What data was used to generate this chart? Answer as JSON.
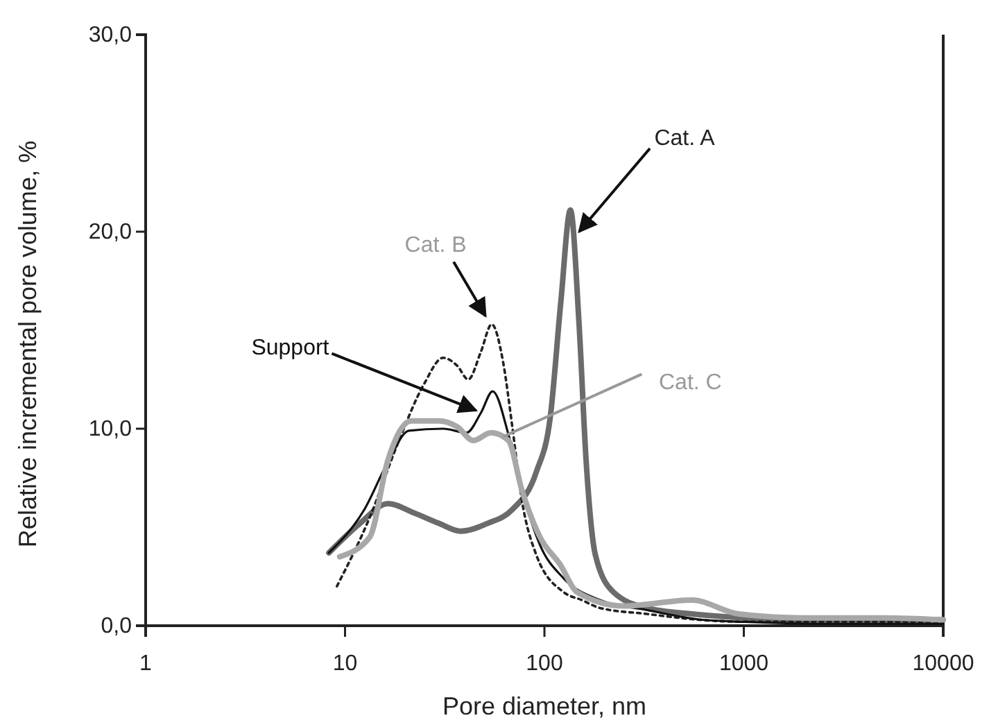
{
  "chart_data": {
    "type": "line",
    "xlabel": "Pore diameter, nm",
    "ylabel": "Relative incremental pore volume, %",
    "log": "x",
    "xlim": [
      1,
      10000
    ],
    "xticks": [
      1,
      10,
      100,
      1000,
      10000
    ],
    "ylim": [
      0,
      30
    ],
    "yticks": [
      {
        "value": 0,
        "label": "0,0"
      },
      {
        "value": 10,
        "label": "10,0"
      },
      {
        "value": 20,
        "label": "20,0"
      },
      {
        "value": 30,
        "label": "30,0"
      }
    ],
    "series": [
      {
        "color": "#6b6b6b",
        "x": [
          8.3,
          11.9,
          16.4,
          22.5,
          29.5,
          38,
          52,
          69,
          91,
          107,
          121,
          135,
          149,
          162,
          180,
          222,
          325,
          550,
          1000,
          2000,
          5000,
          10000
        ],
        "values": [
          3.7,
          5.2,
          6.2,
          5.7,
          5.2,
          4.8,
          5.2,
          5.9,
          7.8,
          10.6,
          16.5,
          21.1,
          15.4,
          8.3,
          3.6,
          1.7,
          0.9,
          0.6,
          0.4,
          0.3,
          0.3,
          0.3
        ]
      },
      {
        "color": "#222222",
        "line_style": "dotted",
        "x": [
          9.1,
          13.3,
          18.3,
          25,
          31,
          36.5,
          41.5,
          48,
          54.4,
          62,
          69,
          77,
          91,
          125,
          154,
          190,
          325,
          600,
          1000,
          3000,
          10000
        ],
        "values": [
          2.0,
          5.5,
          9.2,
          12.3,
          13.6,
          13.2,
          12.5,
          13.9,
          15.3,
          13.4,
          10.1,
          6.4,
          3.6,
          1.7,
          1.3,
          0.9,
          0.6,
          0.3,
          0.2,
          0.2,
          0.2
        ]
      },
      {
        "color": "#111111",
        "x": [
          8.3,
          12.5,
          16.4,
          20.9,
          31,
          40.7,
          48,
          55,
          66,
          77,
          95,
          125,
          190,
          325,
          620,
          1000,
          3000,
          10000
        ],
        "values": [
          3.7,
          5.9,
          8.3,
          9.9,
          10.0,
          9.8,
          10.8,
          11.9,
          9.7,
          6.9,
          4.1,
          2.4,
          1.3,
          0.8,
          0.3,
          0.2,
          0.1,
          0.1
        ]
      },
      {
        "color": "#a8a8a8",
        "x": [
          9.4,
          13.3,
          16.4,
          21.5,
          29.5,
          36.5,
          44,
          54,
          66,
          77,
          95,
          120,
          146,
          250,
          550,
          940,
          2000,
          5000,
          10000
        ],
        "values": [
          3.5,
          4.5,
          8.4,
          10.4,
          10.4,
          10.1,
          9.4,
          9.8,
          9.4,
          6.9,
          4.5,
          3.1,
          1.7,
          1.0,
          1.3,
          0.6,
          0.4,
          0.4,
          0.3
        ]
      }
    ],
    "annotations": [
      {
        "text": "Cat. A",
        "x": 140,
        "y": 20
      },
      {
        "text": "Cat. B",
        "x": 54,
        "y": 15.3
      },
      {
        "text": "Support",
        "x": 50,
        "y": 11
      },
      {
        "text": "Cat. C",
        "x": 62,
        "y": 9.6
      }
    ]
  }
}
